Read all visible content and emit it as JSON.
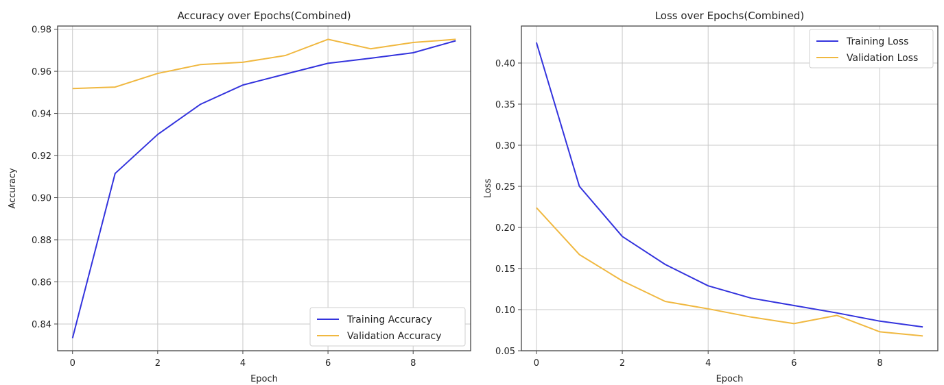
{
  "chart_data": [
    {
      "type": "line",
      "title": "Accuracy over Epochs(Combined)",
      "xlabel": "Epoch",
      "ylabel": "Accuracy",
      "x": [
        0,
        1,
        2,
        3,
        4,
        5,
        6,
        7,
        8,
        9
      ],
      "xlim": [
        -0.35,
        9.35
      ],
      "ylim": [
        0.8273,
        0.9815
      ],
      "xticks": [
        0,
        2,
        4,
        6,
        8
      ],
      "yticks": [
        0.84,
        0.86,
        0.88,
        0.9,
        0.92,
        0.94,
        0.96,
        0.98
      ],
      "ytick_labels": [
        "0.84",
        "0.86",
        "0.88",
        "0.90",
        "0.92",
        "0.94",
        "0.96",
        "0.98"
      ],
      "grid": true,
      "legend_position": "lower-right",
      "series": [
        {
          "name": "Training Accuracy",
          "color": "#3333dd",
          "values": [
            0.8333,
            0.9115,
            0.93,
            0.9443,
            0.9535,
            0.9587,
            0.9638,
            0.9662,
            0.9688,
            0.9745
          ]
        },
        {
          "name": "Validation Accuracy",
          "color": "#f0b840",
          "values": [
            0.9518,
            0.9525,
            0.959,
            0.9632,
            0.9643,
            0.9675,
            0.9752,
            0.9707,
            0.9737,
            0.9752
          ]
        }
      ]
    },
    {
      "type": "line",
      "title": "Loss over Epochs(Combined)",
      "xlabel": "Epoch",
      "ylabel": "Loss",
      "x": [
        0,
        1,
        2,
        3,
        4,
        5,
        6,
        7,
        8,
        9
      ],
      "xlim": [
        -0.35,
        9.35
      ],
      "ylim": [
        0.05,
        0.445
      ],
      "xticks": [
        0,
        2,
        4,
        6,
        8
      ],
      "yticks": [
        0.05,
        0.1,
        0.15,
        0.2,
        0.25,
        0.3,
        0.35,
        0.4
      ],
      "ytick_labels": [
        "0.05",
        "0.10",
        "0.15",
        "0.20",
        "0.25",
        "0.30",
        "0.35",
        "0.40"
      ],
      "grid": true,
      "legend_position": "upper-right",
      "series": [
        {
          "name": "Training Loss",
          "color": "#3333dd",
          "values": [
            0.425,
            0.25,
            0.189,
            0.155,
            0.129,
            0.114,
            0.105,
            0.096,
            0.086,
            0.079
          ]
        },
        {
          "name": "Validation Loss",
          "color": "#f0b840",
          "values": [
            0.224,
            0.167,
            0.135,
            0.11,
            0.101,
            0.091,
            0.083,
            0.093,
            0.073,
            0.068
          ]
        }
      ]
    }
  ]
}
